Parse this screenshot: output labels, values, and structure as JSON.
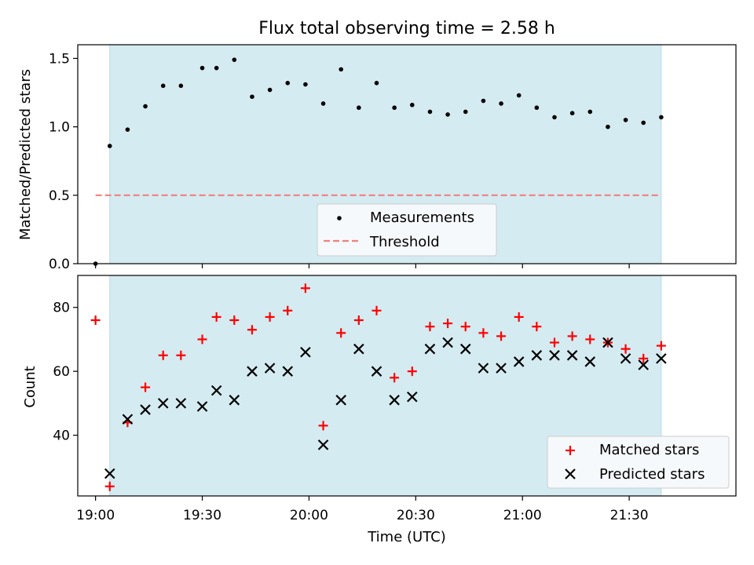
{
  "chart_data": [
    {
      "type": "scatter",
      "title": "Flux total observing time = 2.58 h",
      "xlabel": "",
      "ylabel": "Matched/Predicted stars",
      "xlim": [
        "18:55",
        "22:00"
      ],
      "ylim": [
        0,
        1.6
      ],
      "yticks": [
        0.0,
        0.5,
        1.0,
        1.5
      ],
      "ytick_labels": [
        "0.0",
        "0.5",
        "1.0",
        "1.5"
      ],
      "shaded_span": [
        "19:04",
        "21:39"
      ],
      "legend_position": "lower-center",
      "legend": [
        "Measurements",
        "Threshold"
      ],
      "threshold": {
        "name": "Threshold",
        "value": 0.5,
        "x_start": "19:00",
        "x_end": "21:39",
        "style": "dashed",
        "color": "#f08080"
      },
      "series": [
        {
          "name": "Measurements",
          "color": "#000000",
          "x": [
            "19:00",
            "19:04",
            "19:09",
            "19:14",
            "19:19",
            "19:24",
            "19:30",
            "19:34",
            "19:39",
            "19:44",
            "19:49",
            "19:54",
            "19:59",
            "20:04",
            "20:09",
            "20:14",
            "20:19",
            "20:24",
            "20:29",
            "20:34",
            "20:39",
            "20:44",
            "20:49",
            "20:54",
            "20:59",
            "21:04",
            "21:09",
            "21:14",
            "21:19",
            "21:24",
            "21:29",
            "21:34",
            "21:39"
          ],
          "y": [
            0.0,
            0.86,
            0.98,
            1.15,
            1.3,
            1.3,
            1.43,
            1.43,
            1.49,
            1.22,
            1.27,
            1.32,
            1.31,
            1.17,
            1.42,
            1.14,
            1.32,
            1.14,
            1.16,
            1.11,
            1.09,
            1.11,
            1.19,
            1.17,
            1.23,
            1.14,
            1.07,
            1.1,
            1.11,
            1.0,
            1.05,
            1.03,
            1.07
          ]
        }
      ]
    },
    {
      "type": "scatter",
      "title": "",
      "xlabel": "Time (UTC)",
      "ylabel": "Count",
      "xlim": [
        "18:55",
        "22:00"
      ],
      "xticks": [
        "19:00",
        "19:30",
        "20:00",
        "20:30",
        "21:00",
        "21:30"
      ],
      "ylim": [
        21,
        90
      ],
      "yticks": [
        40,
        60,
        80
      ],
      "ytick_labels": [
        "40",
        "60",
        "80"
      ],
      "shaded_span": [
        "19:04",
        "21:39"
      ],
      "legend_position": "lower-right",
      "legend": [
        "Matched stars",
        "Predicted stars"
      ],
      "series": [
        {
          "name": "Matched stars",
          "color": "#ff0000",
          "marker": "+",
          "x": [
            "19:00",
            "19:04",
            "19:09",
            "19:14",
            "19:19",
            "19:24",
            "19:30",
            "19:34",
            "19:39",
            "19:44",
            "19:49",
            "19:54",
            "19:59",
            "20:04",
            "20:09",
            "20:14",
            "20:19",
            "20:24",
            "20:29",
            "20:34",
            "20:39",
            "20:44",
            "20:49",
            "20:54",
            "20:59",
            "21:04",
            "21:09",
            "21:14",
            "21:19",
            "21:24",
            "21:29",
            "21:34",
            "21:39"
          ],
          "y": [
            76,
            24,
            44,
            55,
            65,
            65,
            70,
            77,
            76,
            73,
            77,
            79,
            86,
            43,
            72,
            76,
            79,
            58,
            60,
            74,
            75,
            74,
            72,
            71,
            77,
            74,
            69,
            71,
            70,
            69,
            67,
            64,
            68
          ]
        },
        {
          "name": "Predicted stars",
          "color": "#000000",
          "marker": "x",
          "x": [
            "19:04",
            "19:09",
            "19:14",
            "19:19",
            "19:24",
            "19:30",
            "19:34",
            "19:39",
            "19:44",
            "19:49",
            "19:54",
            "19:59",
            "20:04",
            "20:09",
            "20:14",
            "20:19",
            "20:24",
            "20:29",
            "20:34",
            "20:39",
            "20:44",
            "20:49",
            "20:54",
            "20:59",
            "21:04",
            "21:09",
            "21:14",
            "21:19",
            "21:24",
            "21:29",
            "21:34",
            "21:39"
          ],
          "y": [
            28,
            45,
            48,
            50,
            50,
            49,
            54,
            51,
            60,
            61,
            60,
            66,
            37,
            51,
            67,
            60,
            51,
            52,
            67,
            69,
            67,
            61,
            61,
            63,
            65,
            65,
            65,
            63,
            69,
            64,
            62,
            64
          ]
        }
      ]
    }
  ],
  "colors": {
    "shade": "#d4ebf1",
    "shade_edge": "#b6dce6",
    "legend_bg": "#f6f9fb",
    "legend_edge": "#cccccc"
  }
}
